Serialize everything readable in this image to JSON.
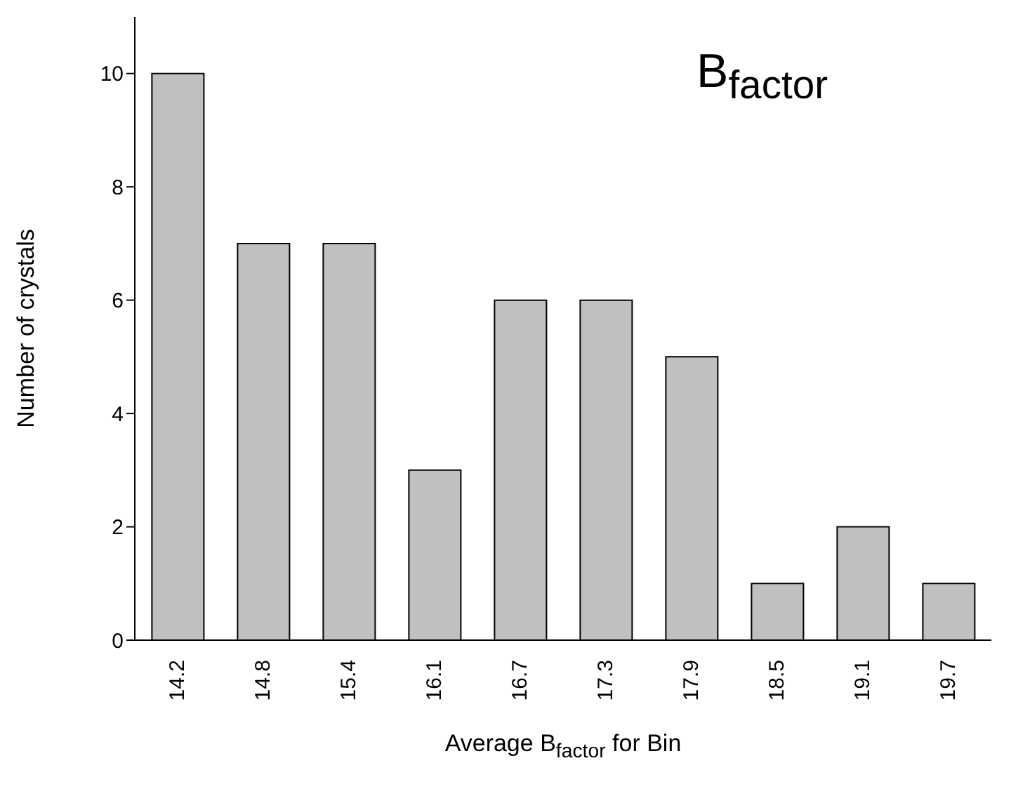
{
  "chart_data": {
    "type": "bar",
    "title": "B$_{factor}$",
    "xlabel": "Average B$_{factor}$ for Bin",
    "ylabel": "Number of crystals",
    "categories": [
      "14.2",
      "14.8",
      "15.4",
      "16.1",
      "16.7",
      "17.3",
      "17.9",
      "18.5",
      "19.1",
      "19.7"
    ],
    "values": [
      10,
      7,
      7,
      3,
      6,
      6,
      5,
      1,
      2,
      1
    ],
    "color": "#c0c0c0",
    "ylim": [
      0,
      11
    ],
    "yticks": [
      0,
      2,
      4,
      6,
      8,
      10
    ],
    "grid": false,
    "legend": false
  }
}
